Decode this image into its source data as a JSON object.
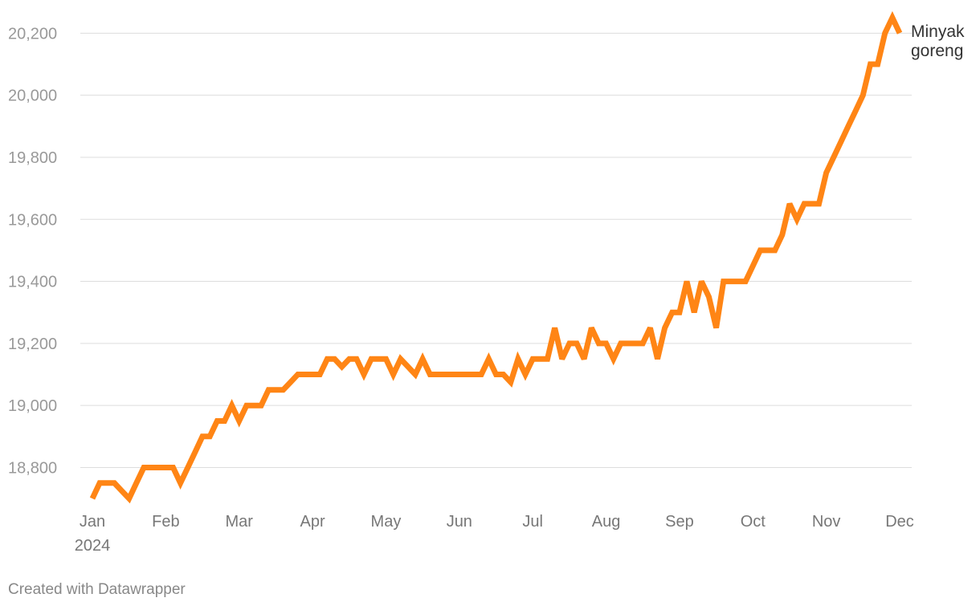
{
  "chart_data": {
    "type": "line",
    "categories": [
      "Jan",
      null,
      null,
      null,
      null,
      null,
      null,
      null,
      null,
      null,
      "Feb",
      null,
      null,
      null,
      null,
      null,
      null,
      null,
      null,
      null,
      "Mar",
      null,
      null,
      null,
      null,
      null,
      null,
      null,
      null,
      null,
      "Apr",
      null,
      null,
      null,
      null,
      null,
      null,
      null,
      null,
      null,
      "May",
      null,
      null,
      null,
      null,
      null,
      null,
      null,
      null,
      null,
      "Jun",
      null,
      null,
      null,
      null,
      null,
      null,
      null,
      null,
      null,
      "Jul",
      null,
      null,
      null,
      null,
      null,
      null,
      null,
      null,
      null,
      "Aug",
      null,
      null,
      null,
      null,
      null,
      null,
      null,
      null,
      null,
      "Sep",
      null,
      null,
      null,
      null,
      null,
      null,
      null,
      null,
      null,
      "Oct",
      null,
      null,
      null,
      null,
      null,
      null,
      null,
      null,
      null,
      "Nov",
      null,
      null,
      null,
      null,
      null,
      null,
      null,
      null,
      null,
      "Dec"
    ],
    "x_year_label": "2024",
    "series": [
      {
        "name": "Minyak goreng",
        "color": "#ff8515",
        "values": [
          18700,
          18750,
          18750,
          18750,
          18725,
          18700,
          18750,
          18800,
          18800,
          18800,
          18800,
          18800,
          18750,
          18800,
          18850,
          18900,
          18900,
          18950,
          18950,
          19000,
          18950,
          19000,
          19000,
          19000,
          19050,
          19050,
          19050,
          19075,
          19100,
          19100,
          19100,
          19100,
          19150,
          19150,
          19125,
          19150,
          19150,
          19100,
          19150,
          19150,
          19150,
          19100,
          19150,
          19125,
          19100,
          19150,
          19100,
          19100,
          19100,
          19100,
          19100,
          19100,
          19100,
          19100,
          19150,
          19100,
          19100,
          19075,
          19150,
          19100,
          19150,
          19150,
          19150,
          19250,
          19150,
          19200,
          19200,
          19150,
          19250,
          19200,
          19200,
          19150,
          19200,
          19200,
          19200,
          19200,
          19250,
          19150,
          19250,
          19300,
          19300,
          19400,
          19300,
          19400,
          19350,
          19250,
          19400,
          19400,
          19400,
          19400,
          19450,
          19500,
          19500,
          19500,
          19550,
          19650,
          19600,
          19650,
          19650,
          19650,
          19750,
          19800,
          19850,
          19900,
          19950,
          20000,
          20100,
          20100,
          20200,
          20250,
          20200
        ]
      }
    ],
    "ylim": [
      18690,
      20250
    ],
    "yticks": [
      {
        "value": 18800,
        "label": "18,800"
      },
      {
        "value": 19000,
        "label": "19,000"
      },
      {
        "value": 19200,
        "label": "19,200"
      },
      {
        "value": 19400,
        "label": "19,400"
      },
      {
        "value": 19600,
        "label": "19,600"
      },
      {
        "value": 19800,
        "label": "19,800"
      },
      {
        "value": 20000,
        "label": "20,000"
      },
      {
        "value": 20200,
        "label": "20,200"
      }
    ],
    "grid": true,
    "footer": "Created with Datawrapper"
  }
}
